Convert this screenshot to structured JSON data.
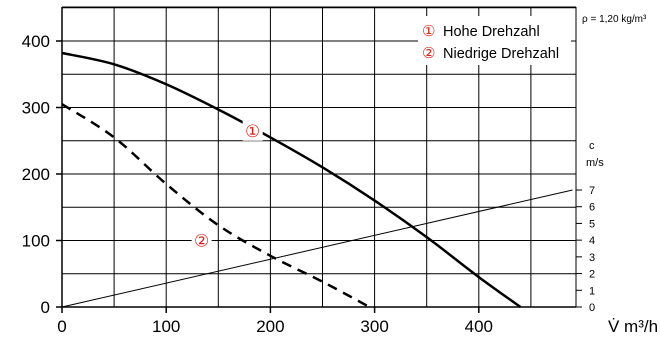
{
  "chart_data": {
    "type": "line",
    "x_axis": {
      "range": [
        0,
        490
      ],
      "ticks": [
        "0",
        "100",
        "200",
        "300",
        "400"
      ],
      "unit_label": "V̇  m³/h"
    },
    "y_axis": {
      "range": [
        0,
        420
      ],
      "ticks": [
        "0",
        "100",
        "200",
        "300",
        "400"
      ]
    },
    "right_axis": {
      "label_symbol": "c",
      "label_unit": "m/s",
      "range": [
        0,
        7
      ],
      "ticks": [
        "0",
        "1",
        "2",
        "3",
        "4",
        "5",
        "6",
        "7"
      ]
    },
    "density_note": "ρ = 1,20 kg/m³",
    "grid": true,
    "legend": {
      "placement": "top-right",
      "entries": [
        {
          "marker": "①",
          "text": "Hohe Drehzahl"
        },
        {
          "marker": "②",
          "text": "Niedrige Drehzahl"
        }
      ]
    },
    "series": [
      {
        "marker": "①",
        "style": "solid",
        "x": [
          0,
          50,
          100,
          150,
          200,
          250,
          300,
          350,
          400,
          440
        ],
        "y": [
          382,
          365,
          335,
          297,
          255,
          210,
          160,
          105,
          45,
          0
        ]
      },
      {
        "marker": "②",
        "style": "dashed",
        "x": [
          0,
          50,
          100,
          150,
          200,
          250,
          295
        ],
        "y": [
          305,
          255,
          185,
          123,
          77,
          38,
          0
        ]
      },
      {
        "name": "c",
        "style": "thin",
        "axis": "right",
        "x": [
          0,
          490
        ],
        "y": [
          0,
          7
        ]
      }
    ],
    "curve_markers": [
      {
        "text": "①",
        "x": 183,
        "y": 265
      },
      {
        "text": "②",
        "x": 134,
        "y": 100
      }
    ],
    "colors": {
      "accent": "#e2231a",
      "line": "#000000",
      "grid": "#000000"
    }
  }
}
